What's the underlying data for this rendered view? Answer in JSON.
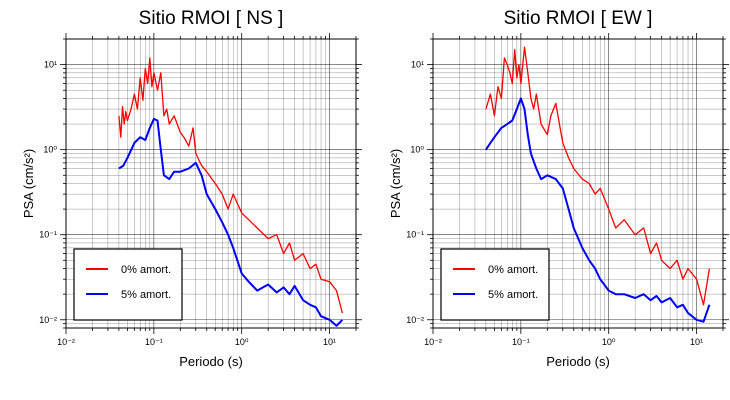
{
  "chart_data": [
    {
      "type": "line",
      "title": "Sitio RMOI [ NS ]",
      "xlabel": "Periodo (s)",
      "ylabel": "PSA (cm/s²)",
      "x_scale": "log",
      "y_scale": "log",
      "xlim": [
        0.01,
        20
      ],
      "ylim": [
        0.008,
        20
      ],
      "grid": true,
      "legend_position": "bottom-left",
      "x_ticks": [
        "10⁻²",
        "10⁻¹",
        "10⁰",
        "10¹"
      ],
      "y_ticks": [
        "10⁻²",
        "10⁻¹",
        "10⁰",
        "10¹"
      ],
      "series": [
        {
          "name": "0% amort.",
          "color": "#ff0000",
          "x": [
            0.04,
            0.042,
            0.044,
            0.046,
            0.048,
            0.05,
            0.055,
            0.06,
            0.065,
            0.07,
            0.075,
            0.08,
            0.085,
            0.09,
            0.095,
            0.1,
            0.11,
            0.12,
            0.13,
            0.14,
            0.15,
            0.17,
            0.2,
            0.22,
            0.25,
            0.28,
            0.3,
            0.35,
            0.4,
            0.5,
            0.6,
            0.7,
            0.8,
            1.0,
            1.2,
            1.5,
            2.0,
            2.5,
            3.0,
            3.5,
            4.0,
            5.0,
            6.0,
            7.0,
            8.0,
            10.0,
            12.0,
            14.0
          ],
          "y": [
            2.5,
            1.4,
            3.2,
            2.0,
            2.8,
            2.2,
            3.0,
            4.5,
            3.0,
            7.0,
            3.8,
            9.0,
            6.0,
            12.0,
            5.5,
            8.0,
            5.0,
            8.0,
            2.5,
            3.0,
            2.0,
            2.5,
            1.6,
            1.4,
            1.1,
            1.8,
            0.9,
            0.65,
            0.55,
            0.4,
            0.3,
            0.2,
            0.3,
            0.18,
            0.15,
            0.12,
            0.09,
            0.1,
            0.06,
            0.08,
            0.05,
            0.06,
            0.04,
            0.045,
            0.03,
            0.028,
            0.022,
            0.012
          ]
        },
        {
          "name": "5% amort.",
          "color": "#0000ff",
          "x": [
            0.04,
            0.045,
            0.05,
            0.06,
            0.07,
            0.08,
            0.09,
            0.1,
            0.11,
            0.12,
            0.13,
            0.15,
            0.17,
            0.2,
            0.25,
            0.3,
            0.35,
            0.4,
            0.5,
            0.6,
            0.7,
            0.8,
            1.0,
            1.2,
            1.5,
            2.0,
            2.5,
            3.0,
            3.5,
            4.0,
            5.0,
            6.0,
            7.0,
            8.0,
            10.0,
            12.0,
            14.0
          ],
          "y": [
            0.6,
            0.65,
            0.8,
            1.2,
            1.4,
            1.3,
            1.8,
            2.3,
            2.2,
            1.0,
            0.5,
            0.45,
            0.55,
            0.55,
            0.6,
            0.7,
            0.5,
            0.3,
            0.2,
            0.14,
            0.1,
            0.07,
            0.035,
            0.028,
            0.022,
            0.026,
            0.021,
            0.024,
            0.02,
            0.025,
            0.017,
            0.015,
            0.014,
            0.011,
            0.01,
            0.0085,
            0.01
          ]
        }
      ]
    },
    {
      "type": "line",
      "title": "Sitio RMOI [ EW ]",
      "xlabel": "Periodo (s)",
      "ylabel": "PSA (cm/s²)",
      "x_scale": "log",
      "y_scale": "log",
      "xlim": [
        0.01,
        20
      ],
      "ylim": [
        0.008,
        20
      ],
      "grid": true,
      "legend_position": "bottom-left",
      "x_ticks": [
        "10⁻²",
        "10⁻¹",
        "10⁰",
        "10¹"
      ],
      "y_ticks": [
        "10⁻²",
        "10⁻¹",
        "10⁰",
        "10¹"
      ],
      "series": [
        {
          "name": "0% amort.",
          "color": "#ff0000",
          "x": [
            0.04,
            0.045,
            0.05,
            0.055,
            0.06,
            0.065,
            0.07,
            0.075,
            0.08,
            0.085,
            0.09,
            0.095,
            0.1,
            0.11,
            0.12,
            0.13,
            0.14,
            0.15,
            0.17,
            0.2,
            0.22,
            0.25,
            0.28,
            0.3,
            0.35,
            0.4,
            0.5,
            0.6,
            0.7,
            0.8,
            1.0,
            1.2,
            1.5,
            2.0,
            2.5,
            3.0,
            3.5,
            4.0,
            5.0,
            6.0,
            7.0,
            8.0,
            10.0,
            12.0,
            14.0
          ],
          "y": [
            3.0,
            4.5,
            2.5,
            5.5,
            4.0,
            12.0,
            10.0,
            8.0,
            6.0,
            15.0,
            7.0,
            10.0,
            6.0,
            16.0,
            8.0,
            4.0,
            3.0,
            4.5,
            2.0,
            1.5,
            2.5,
            3.5,
            1.8,
            1.2,
            0.8,
            0.6,
            0.45,
            0.4,
            0.3,
            0.35,
            0.2,
            0.12,
            0.15,
            0.1,
            0.12,
            0.06,
            0.08,
            0.05,
            0.04,
            0.05,
            0.03,
            0.04,
            0.03,
            0.015,
            0.04
          ]
        },
        {
          "name": "5% amort.",
          "color": "#0000ff",
          "x": [
            0.04,
            0.045,
            0.05,
            0.06,
            0.07,
            0.08,
            0.09,
            0.1,
            0.11,
            0.12,
            0.13,
            0.15,
            0.17,
            0.2,
            0.25,
            0.3,
            0.35,
            0.4,
            0.5,
            0.6,
            0.7,
            0.8,
            1.0,
            1.2,
            1.5,
            2.0,
            2.5,
            3.0,
            3.5,
            4.0,
            5.0,
            6.0,
            7.0,
            8.0,
            10.0,
            12.0,
            14.0
          ],
          "y": [
            1.0,
            1.2,
            1.4,
            1.8,
            2.0,
            2.2,
            3.0,
            4.0,
            3.0,
            1.5,
            0.9,
            0.6,
            0.45,
            0.5,
            0.45,
            0.35,
            0.2,
            0.12,
            0.07,
            0.05,
            0.04,
            0.03,
            0.022,
            0.02,
            0.02,
            0.018,
            0.02,
            0.017,
            0.019,
            0.016,
            0.018,
            0.014,
            0.015,
            0.012,
            0.01,
            0.0095,
            0.015
          ]
        }
      ]
    }
  ]
}
